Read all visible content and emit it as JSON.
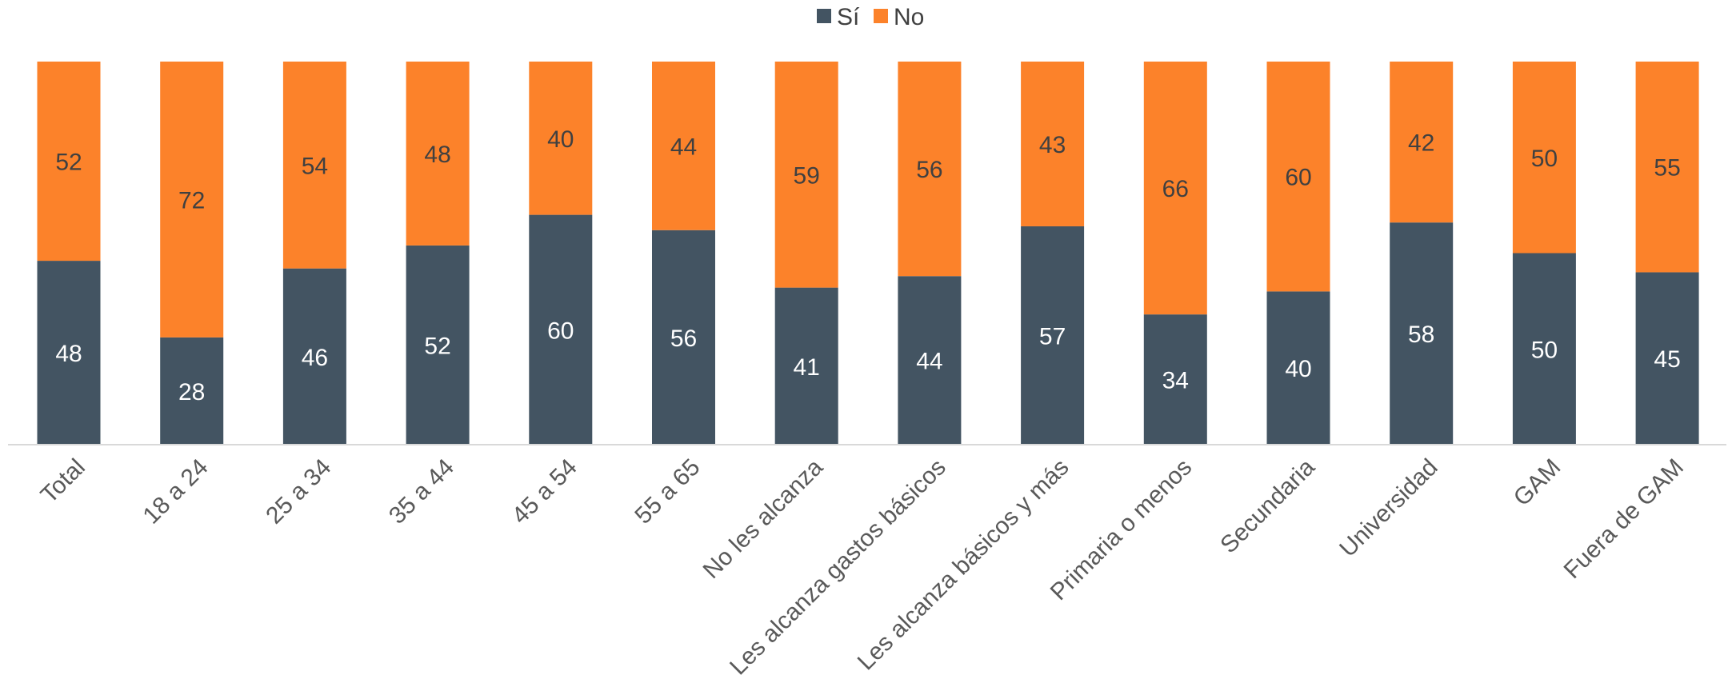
{
  "chart_data": {
    "type": "bar",
    "stacked": true,
    "percent_stacked": true,
    "categories": [
      "Total",
      "18 a 24",
      "25 a 34",
      "35 a 44",
      "45 a 54",
      "55 a 65",
      "No les alcanza",
      "Les alcanza gastos básicos",
      "Les alcanza básicos y más",
      "Primaria o menos",
      "Secundaria",
      "Universidad",
      "GAM",
      "Fuera de GAM"
    ],
    "series": [
      {
        "name": "Sí",
        "color": "#435462",
        "label_color": "#ffffff",
        "values": [
          48,
          28,
          46,
          52,
          60,
          56,
          41,
          44,
          57,
          34,
          40,
          58,
          50,
          45
        ]
      },
      {
        "name": "No",
        "color": "#fc822a",
        "label_color": "#404040",
        "values": [
          52,
          72,
          54,
          48,
          40,
          44,
          59,
          56,
          43,
          66,
          60,
          42,
          50,
          55
        ]
      }
    ],
    "legend_position": "top",
    "ylim": [
      0,
      100
    ],
    "grid": false,
    "title": "",
    "xlabel": "",
    "ylabel": ""
  }
}
